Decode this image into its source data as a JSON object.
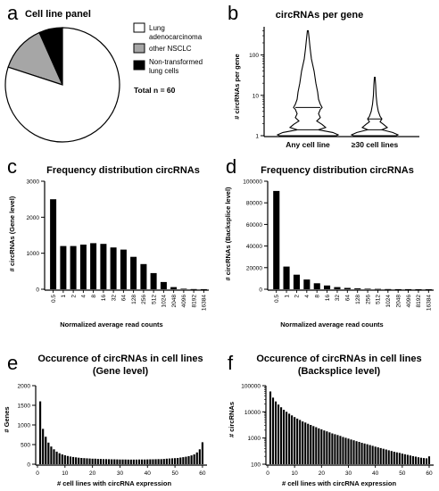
{
  "colors": {
    "black": "#000000",
    "grey": "#a6a6a6",
    "white": "#ffffff"
  },
  "panels": {
    "a": {
      "label": "a",
      "title": "Cell line panel",
      "total": "Total n = 60",
      "legend": [
        "Lung adenocarcinoma",
        "other NSCLC",
        "Non-transformed lung cells"
      ],
      "legend_lines": [
        [
          "Lung",
          "adenocarcinoma"
        ],
        [
          "other NSCLC"
        ],
        [
          "Non-transformed",
          "lung cells"
        ]
      ]
    },
    "b": {
      "label": "b"
    },
    "c": {
      "label": "c"
    },
    "d": {
      "label": "d"
    },
    "e": {
      "label": "e"
    },
    "f": {
      "label": "f"
    }
  },
  "chart_data": [
    {
      "id": "a",
      "type": "pie",
      "title": "Cell line panel",
      "categories": [
        "Lung adenocarcinoma",
        "other NSCLC",
        "Non-transformed lung cells"
      ],
      "values": [
        48,
        8,
        4
      ],
      "colors": [
        "#ffffff",
        "#a6a6a6",
        "#000000"
      ],
      "total": 60
    },
    {
      "id": "b",
      "type": "violin",
      "title": "circRNAs per gene",
      "ylabel": "# circRNAs per gene",
      "yscale": "log",
      "ylim": [
        1,
        500
      ],
      "yticks": [
        "1",
        "10",
        "100"
      ],
      "categories": [
        "Any cell line",
        "≥30 cell lines"
      ],
      "max_values": [
        400,
        28
      ]
    },
    {
      "id": "c",
      "type": "bar",
      "title": "Frequency distribution circRNAs",
      "xlabel": "Normalized average read counts",
      "ylabel": "# circRNAs (Gene level)",
      "ylim": [
        0,
        3000
      ],
      "yticks": [
        "0",
        "1000",
        "2000",
        "3000"
      ],
      "categories": [
        "0.5",
        "1",
        "2",
        "4",
        "8",
        "16",
        "32",
        "64",
        "128",
        "256",
        "512",
        "1024",
        "2048",
        "4096",
        "8192",
        "16384"
      ],
      "values": [
        2500,
        1200,
        1200,
        1240,
        1280,
        1260,
        1160,
        1100,
        900,
        700,
        450,
        200,
        60,
        15,
        5,
        2
      ]
    },
    {
      "id": "d",
      "type": "bar",
      "title": "Frequency distribution circRNAs",
      "xlabel": "Normalized average read counts",
      "ylabel": "# circRNAs (Backsplice level)",
      "ylim": [
        0,
        100000
      ],
      "yticks": [
        "0",
        "20000",
        "40000",
        "60000",
        "80000",
        "100000"
      ],
      "categories": [
        "0.5",
        "1",
        "2",
        "4",
        "8",
        "16",
        "32",
        "64",
        "128",
        "256",
        "512",
        "1024",
        "2048",
        "4096",
        "8192",
        "16384"
      ],
      "values": [
        91000,
        21000,
        13500,
        9000,
        5500,
        3500,
        2000,
        1200,
        800,
        500,
        300,
        200,
        100,
        50,
        20,
        10
      ]
    },
    {
      "id": "e",
      "type": "bar",
      "title": "Occurence of circRNAs in cell lines",
      "subtitle": "(Gene level)",
      "xlabel": "# cell lines with circRNA expression",
      "ylabel": "# Genes",
      "ylim": [
        0,
        2000
      ],
      "yticks": [
        "0",
        "500",
        "1000",
        "1500",
        "2000"
      ],
      "xticks": [
        "0",
        "10",
        "20",
        "30",
        "40",
        "50",
        "60"
      ],
      "x": [
        1,
        2,
        3,
        4,
        5,
        6,
        7,
        8,
        9,
        10,
        11,
        12,
        13,
        14,
        15,
        16,
        17,
        18,
        19,
        20,
        21,
        22,
        23,
        24,
        25,
        26,
        27,
        28,
        29,
        30,
        31,
        32,
        33,
        34,
        35,
        36,
        37,
        38,
        39,
        40,
        41,
        42,
        43,
        44,
        45,
        46,
        47,
        48,
        49,
        50,
        51,
        52,
        53,
        54,
        55,
        56,
        57,
        58,
        59,
        60
      ],
      "values": [
        1600,
        900,
        700,
        550,
        450,
        380,
        320,
        280,
        250,
        230,
        210,
        195,
        185,
        175,
        165,
        160,
        155,
        150,
        145,
        140,
        140,
        135,
        135,
        130,
        130,
        128,
        125,
        125,
        122,
        120,
        120,
        120,
        118,
        118,
        118,
        118,
        120,
        120,
        120,
        122,
        125,
        125,
        128,
        130,
        130,
        135,
        140,
        145,
        150,
        155,
        160,
        170,
        180,
        190,
        205,
        225,
        250,
        300,
        380,
        560
      ]
    },
    {
      "id": "f",
      "type": "bar",
      "title": "Occurence of circRNAs in cell lines",
      "subtitle": "(Backsplice level)",
      "xlabel": "# cell lines with circRNA expression",
      "ylabel": "# circRNAs",
      "yscale": "log",
      "ylim": [
        100,
        100000
      ],
      "yticks": [
        "100",
        "1000",
        "10000",
        "100000"
      ],
      "xticks": [
        "0",
        "10",
        "20",
        "30",
        "40",
        "50",
        "60"
      ],
      "x": [
        1,
        2,
        3,
        4,
        5,
        6,
        7,
        8,
        9,
        10,
        11,
        12,
        13,
        14,
        15,
        16,
        17,
        18,
        19,
        20,
        21,
        22,
        23,
        24,
        25,
        26,
        27,
        28,
        29,
        30,
        31,
        32,
        33,
        34,
        35,
        36,
        37,
        38,
        39,
        40,
        41,
        42,
        43,
        44,
        45,
        46,
        47,
        48,
        49,
        50,
        51,
        52,
        53,
        54,
        55,
        56,
        57,
        58,
        59,
        60
      ],
      "values": [
        60000,
        35000,
        25000,
        19000,
        15000,
        12000,
        10000,
        8500,
        7300,
        6300,
        5500,
        4900,
        4300,
        3900,
        3500,
        3150,
        2850,
        2600,
        2350,
        2150,
        1950,
        1800,
        1650,
        1500,
        1400,
        1300,
        1200,
        1100,
        1020,
        950,
        880,
        820,
        760,
        710,
        660,
        620,
        580,
        540,
        505,
        470,
        440,
        415,
        390,
        365,
        340,
        320,
        300,
        285,
        270,
        255,
        240,
        228,
        216,
        205,
        195,
        185,
        178,
        172,
        168,
        200
      ]
    }
  ]
}
